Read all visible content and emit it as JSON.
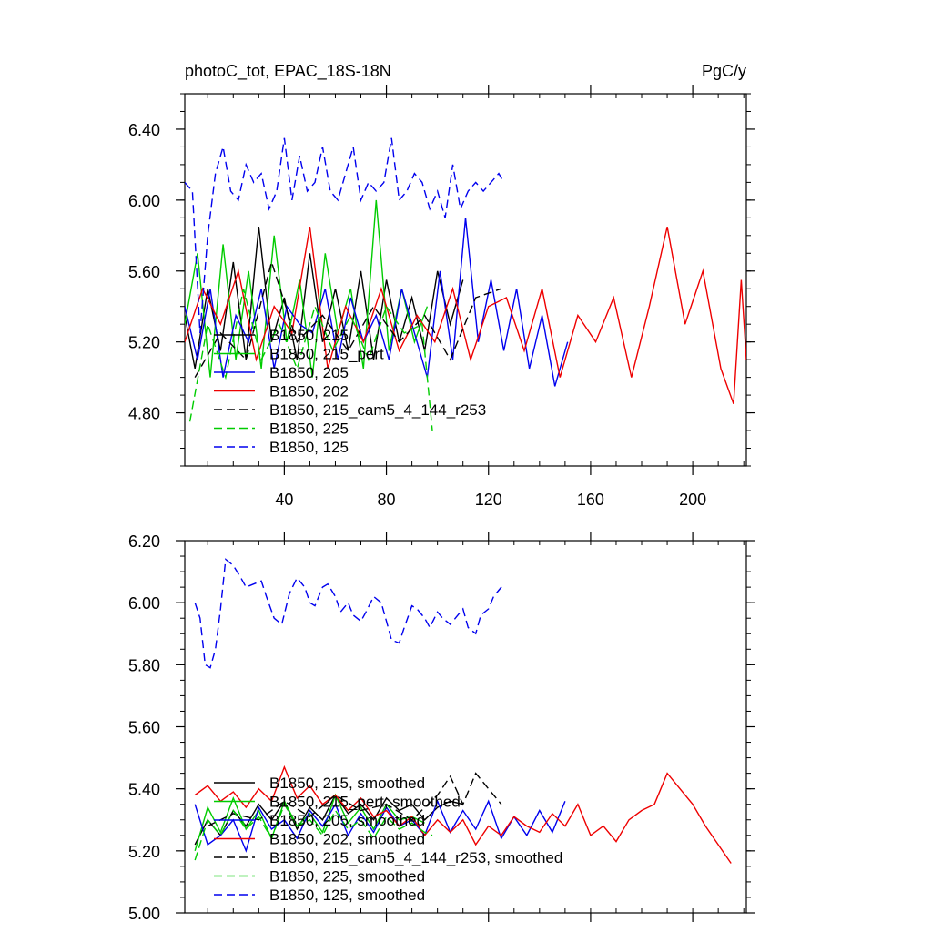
{
  "chart_data": [
    {
      "type": "line",
      "title": "photoC_tot, EPAC_18S-18N",
      "units": "PgC/y",
      "xlabel": "",
      "ylabel": "",
      "xlim": [
        1,
        221
      ],
      "ylim": [
        4.5,
        6.6
      ],
      "xticks": [
        40,
        80,
        120,
        160,
        200
      ],
      "xtick_labels": [
        "40",
        "80",
        "120",
        "160",
        "200"
      ],
      "yticks": [
        4.8,
        5.2,
        5.6,
        6.0,
        6.4
      ],
      "ytick_labels": [
        "4.80",
        "5.20",
        "5.60",
        "6.00",
        "6.40"
      ],
      "legend_position": "bottom-left, inside plot",
      "series": [
        {
          "name": "B1850, 215",
          "legend": "B1850, 215",
          "color": "#000000",
          "dash": "solid",
          "x": [
            1,
            5,
            10,
            15,
            20,
            25,
            30,
            35,
            40,
            45,
            50,
            55,
            60,
            65,
            70,
            75,
            80,
            85,
            90,
            95,
            100,
            105,
            110
          ],
          "values": [
            5.35,
            5.05,
            5.5,
            5.15,
            5.65,
            5.1,
            5.85,
            5.2,
            5.45,
            5.1,
            5.7,
            5.2,
            5.5,
            5.15,
            5.6,
            5.1,
            5.55,
            5.2,
            5.45,
            5.15,
            5.6,
            5.3,
            5.55
          ]
        },
        {
          "name": "B1850, 215_pert",
          "legend": "B1850, 215_pert",
          "color": "#00cc00",
          "dash": "solid",
          "x": [
            1,
            6,
            11,
            16,
            21,
            26,
            31,
            36,
            41,
            46,
            51,
            56,
            61,
            66,
            71,
            76,
            81,
            86,
            91,
            96
          ],
          "values": [
            5.3,
            5.7,
            5.0,
            5.75,
            5.1,
            5.6,
            5.05,
            5.8,
            5.2,
            5.55,
            5.0,
            5.7,
            5.25,
            5.5,
            5.05,
            6.0,
            5.15,
            5.5,
            5.2,
            5.4
          ]
        },
        {
          "name": "B1850, 205",
          "legend": "B1850, 205",
          "color": "#0000ee",
          "dash": "solid",
          "x": [
            1,
            6,
            11,
            16,
            21,
            26,
            31,
            36,
            41,
            46,
            51,
            56,
            61,
            66,
            71,
            76,
            81,
            86,
            91,
            96,
            101,
            106,
            111,
            116,
            121,
            126,
            131,
            136,
            141,
            146,
            151
          ],
          "values": [
            5.4,
            5.1,
            5.5,
            5.0,
            5.35,
            5.2,
            5.5,
            5.05,
            5.4,
            5.3,
            5.25,
            5.5,
            5.1,
            5.45,
            5.2,
            5.35,
            5.1,
            5.5,
            5.25,
            5.0,
            5.6,
            5.1,
            5.9,
            5.2,
            5.55,
            5.15,
            5.5,
            5.05,
            5.35,
            4.95,
            5.2
          ]
        },
        {
          "name": "B1850, 202",
          "legend": "B1850, 202",
          "color": "#ee0000",
          "dash": "solid",
          "x": [
            1,
            8,
            15,
            22,
            29,
            36,
            43,
            50,
            57,
            64,
            71,
            78,
            85,
            92,
            99,
            106,
            113,
            120,
            127,
            134,
            141,
            148,
            155,
            162,
            169,
            176,
            183,
            190,
            197,
            204,
            211,
            216,
            219,
            221
          ],
          "values": [
            5.2,
            5.5,
            5.3,
            5.6,
            5.1,
            5.4,
            5.25,
            5.85,
            5.05,
            5.4,
            5.2,
            5.5,
            5.15,
            5.35,
            5.2,
            5.5,
            5.1,
            5.4,
            5.45,
            5.15,
            5.5,
            5.0,
            5.35,
            5.2,
            5.45,
            5.0,
            5.4,
            5.85,
            5.3,
            5.6,
            5.05,
            4.85,
            5.55,
            5.1
          ]
        },
        {
          "name": "B1850, 215_cam5_4_144_r253",
          "legend": "B1850, 215_cam5_4_144_r253",
          "color": "#000000",
          "dash": "dashed",
          "x": [
            5,
            15,
            25,
            35,
            45,
            55,
            65,
            75,
            85,
            95,
            105,
            115,
            125
          ],
          "values": [
            5.0,
            5.25,
            5.1,
            5.65,
            5.2,
            5.35,
            5.15,
            5.4,
            5.2,
            5.35,
            5.1,
            5.45,
            5.5
          ]
        },
        {
          "name": "B1850, 225",
          "legend": "B1850, 225",
          "color": "#00cc00",
          "dash": "dashed",
          "x": [
            3,
            10,
            17,
            24,
            31,
            38,
            45,
            52,
            59,
            66,
            73,
            80,
            87,
            94,
            98
          ],
          "values": [
            4.75,
            5.3,
            5.0,
            5.5,
            5.1,
            5.3,
            5.05,
            5.4,
            5.15,
            5.35,
            5.1,
            5.4,
            5.25,
            5.3,
            4.7
          ]
        },
        {
          "name": "B1850, 125",
          "legend": "B1850, 125",
          "color": "#0000ee",
          "dash": "dashed",
          "x": [
            1,
            4,
            7,
            10,
            13,
            16,
            19,
            22,
            25,
            28,
            31,
            34,
            37,
            40,
            43,
            46,
            49,
            52,
            55,
            58,
            61,
            64,
            67,
            70,
            73,
            76,
            79,
            82,
            85,
            88,
            91,
            94,
            97,
            100,
            103,
            106,
            109,
            112,
            115,
            118,
            121,
            124,
            126
          ],
          "values": [
            6.1,
            6.05,
            5.25,
            5.8,
            6.15,
            6.3,
            6.05,
            6.0,
            6.2,
            6.1,
            6.15,
            5.95,
            6.05,
            6.35,
            6.0,
            6.25,
            6.05,
            6.1,
            6.3,
            6.05,
            6.0,
            6.15,
            6.3,
            6.0,
            6.1,
            6.05,
            6.1,
            6.35,
            6.0,
            6.05,
            6.15,
            6.1,
            5.95,
            6.05,
            5.9,
            6.2,
            5.95,
            6.05,
            6.1,
            6.05,
            6.1,
            6.15,
            6.1
          ]
        }
      ]
    },
    {
      "type": "line",
      "title": "",
      "xlabel": "",
      "ylabel": "",
      "xlim": [
        1,
        221
      ],
      "ylim": [
        5.0,
        6.2
      ],
      "xticks": [
        40,
        80,
        120,
        160,
        200
      ],
      "xtick_labels": [],
      "yticks": [
        5.0,
        5.2,
        5.4,
        5.6,
        5.8,
        6.0,
        6.2
      ],
      "ytick_labels": [
        "5.00",
        "5.20",
        "5.40",
        "5.60",
        "5.80",
        "6.00",
        "6.20"
      ],
      "legend_position": "bottom-left, inside plot",
      "series": [
        {
          "name": "B1850, 215, smoothed",
          "legend": "B1850, 215, smoothed",
          "color": "#000000",
          "dash": "solid",
          "x": [
            5,
            10,
            15,
            20,
            25,
            30,
            35,
            40,
            45,
            50,
            55,
            60,
            65,
            70,
            75,
            80,
            85,
            90,
            95,
            100,
            105,
            110
          ],
          "values": [
            5.22,
            5.3,
            5.25,
            5.33,
            5.28,
            5.35,
            5.3,
            5.36,
            5.27,
            5.34,
            5.3,
            5.38,
            5.32,
            5.35,
            5.3,
            5.37,
            5.33,
            5.35,
            5.3,
            5.34,
            5.36,
            5.35
          ]
        },
        {
          "name": "B1850, 215_pert, smoothed",
          "legend": "B1850, 215_pert, smoothed",
          "color": "#00cc00",
          "dash": "solid",
          "x": [
            5,
            10,
            15,
            20,
            25,
            30,
            35,
            40,
            45,
            50,
            55,
            60,
            65,
            70,
            75,
            80,
            85,
            90,
            95
          ],
          "values": [
            5.2,
            5.34,
            5.26,
            5.37,
            5.27,
            5.33,
            5.24,
            5.36,
            5.28,
            5.32,
            5.26,
            5.38,
            5.29,
            5.34,
            5.27,
            5.35,
            5.3,
            5.31,
            5.29
          ]
        },
        {
          "name": "B1850, 205, smoothed",
          "legend": "B1850, 205, smoothed",
          "color": "#0000ee",
          "dash": "solid",
          "x": [
            5,
            10,
            15,
            20,
            25,
            30,
            35,
            40,
            45,
            50,
            55,
            60,
            65,
            70,
            75,
            80,
            85,
            90,
            95,
            100,
            105,
            110,
            115,
            120,
            125,
            130,
            135,
            140,
            145,
            150
          ],
          "values": [
            5.35,
            5.22,
            5.25,
            5.3,
            5.2,
            5.34,
            5.27,
            5.3,
            5.24,
            5.33,
            5.28,
            5.35,
            5.25,
            5.32,
            5.26,
            5.34,
            5.28,
            5.3,
            5.25,
            5.36,
            5.26,
            5.33,
            5.27,
            5.36,
            5.24,
            5.31,
            5.25,
            5.33,
            5.26,
            5.36
          ]
        },
        {
          "name": "B1850, 202, smoothed",
          "legend": "B1850, 202, smoothed",
          "color": "#ee0000",
          "dash": "solid",
          "x": [
            5,
            10,
            15,
            20,
            25,
            30,
            35,
            40,
            45,
            50,
            55,
            60,
            65,
            70,
            75,
            80,
            85,
            90,
            95,
            100,
            105,
            110,
            115,
            120,
            125,
            130,
            135,
            140,
            145,
            150,
            155,
            160,
            165,
            170,
            175,
            180,
            185,
            190,
            195,
            200,
            205,
            210,
            215
          ],
          "values": [
            5.38,
            5.41,
            5.36,
            5.39,
            5.34,
            5.4,
            5.36,
            5.47,
            5.37,
            5.41,
            5.35,
            5.38,
            5.33,
            5.37,
            5.31,
            5.33,
            5.28,
            5.31,
            5.25,
            5.3,
            5.26,
            5.3,
            5.22,
            5.28,
            5.25,
            5.31,
            5.28,
            5.26,
            5.32,
            5.28,
            5.35,
            5.25,
            5.28,
            5.23,
            5.3,
            5.33,
            5.35,
            5.45,
            5.4,
            5.35,
            5.28,
            5.22,
            5.16
          ]
        },
        {
          "name": "B1850, 215_cam5_4_144_r253, smoothed",
          "legend": "B1850, 215_cam5_4_144_r253, smoothed",
          "color": "#000000",
          "dash": "dashed",
          "x": [
            10,
            20,
            30,
            40,
            50,
            60,
            70,
            80,
            90,
            100,
            105,
            110,
            115,
            120,
            125
          ],
          "values": [
            5.28,
            5.32,
            5.3,
            5.36,
            5.31,
            5.38,
            5.33,
            5.35,
            5.3,
            5.38,
            5.44,
            5.35,
            5.45,
            5.4,
            5.35
          ]
        },
        {
          "name": "B1850, 225, smoothed",
          "legend": "B1850, 225, smoothed",
          "color": "#00cc00",
          "dash": "dashed",
          "x": [
            5,
            10,
            15,
            20,
            25,
            30,
            35,
            40,
            45,
            50,
            55,
            60,
            65,
            70,
            75,
            80,
            85,
            90,
            95,
            98
          ],
          "values": [
            5.17,
            5.3,
            5.25,
            5.33,
            5.27,
            5.31,
            5.24,
            5.35,
            5.28,
            5.3,
            5.25,
            5.33,
            5.27,
            5.3,
            5.24,
            5.31,
            5.27,
            5.29,
            5.26,
            5.25
          ]
        },
        {
          "name": "B1850, 125, smoothed",
          "legend": "B1850, 125, smoothed",
          "color": "#0000ee",
          "dash": "dashed",
          "x": [
            5,
            7,
            9,
            11,
            13,
            15,
            17,
            20,
            23,
            25,
            28,
            31,
            33,
            36,
            39,
            42,
            45,
            48,
            50,
            52,
            55,
            57,
            60,
            62,
            65,
            67,
            70,
            72,
            75,
            78,
            80,
            82,
            85,
            87,
            90,
            92,
            95,
            97,
            100,
            102,
            105,
            107,
            110,
            112,
            115,
            117,
            120,
            122,
            124,
            126
          ],
          "values": [
            6.0,
            5.95,
            5.8,
            5.79,
            5.85,
            5.98,
            6.14,
            6.12,
            6.08,
            6.05,
            6.06,
            6.07,
            6.02,
            5.95,
            5.93,
            6.03,
            6.08,
            6.05,
            6.0,
            5.99,
            6.05,
            6.06,
            6.02,
            5.97,
            6.0,
            5.96,
            5.94,
            5.97,
            6.02,
            6.0,
            5.94,
            5.88,
            5.87,
            5.92,
            5.99,
            5.98,
            5.95,
            5.92,
            5.97,
            5.95,
            5.93,
            5.95,
            5.98,
            5.92,
            5.9,
            5.96,
            5.98,
            6.02,
            6.04,
            6.06
          ]
        }
      ]
    }
  ]
}
